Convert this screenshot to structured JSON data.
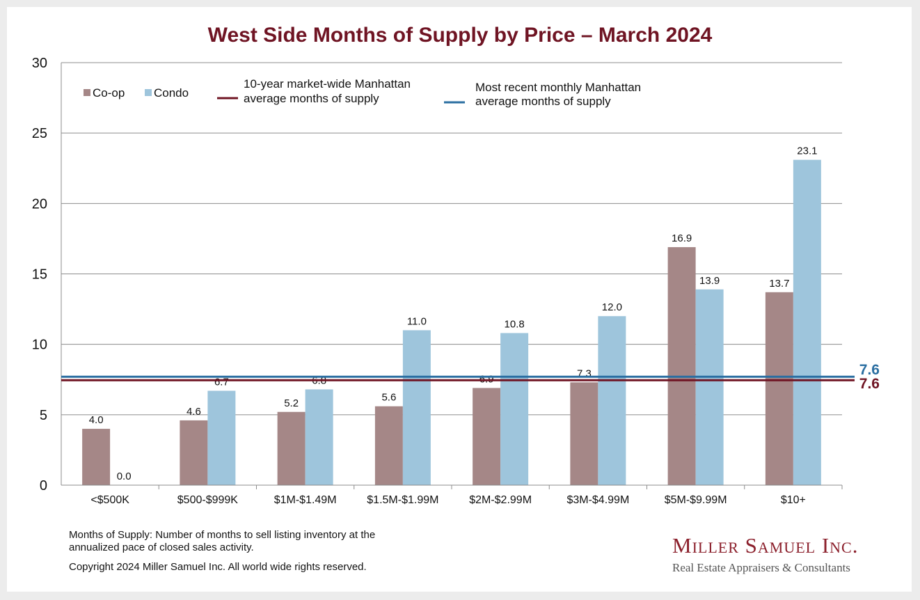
{
  "page": {
    "footnote_line1": "Months of Supply: Number of months to sell listing inventory at the",
    "footnote_line2": "annualized pace of closed sales activity.",
    "copyright": "Copyright 2024 Miller Samuel Inc.  All world wide rights reserved.",
    "brand_name": "Miller Samuel Inc.",
    "brand_tagline": "Real Estate Appraisers & Consultants"
  },
  "chart_data": {
    "type": "bar",
    "title": "West Side Months of Supply by Price – March 2024",
    "categories": [
      "<$500K",
      "$500-$999K",
      "$1M-$1.49M",
      "$1.5M-$1.99M",
      "$2M-$2.99M",
      "$3M-$4.99M",
      "$5M-$9.99M",
      "$10+"
    ],
    "series": [
      {
        "name": "Co-op",
        "color": "#a58787",
        "values": [
          4.0,
          4.6,
          5.2,
          5.6,
          6.9,
          7.3,
          16.9,
          13.7
        ],
        "labels": [
          "4.0",
          "4.6",
          "5.2",
          "5.6",
          "6.9",
          "7.3",
          "16.9",
          "13.7"
        ]
      },
      {
        "name": "Condo",
        "color": "#9ec5dc",
        "values": [
          0.0,
          6.7,
          6.8,
          11.0,
          10.8,
          12.0,
          13.9,
          23.1
        ],
        "labels": [
          "0.0",
          "6.7",
          "6.8",
          "11.0",
          "10.8",
          "12.0",
          "13.9",
          "23.1"
        ]
      }
    ],
    "reference_lines": [
      {
        "name": "10-year market-wide Manhattan average months of supply",
        "legend_lines": [
          "10-year market-wide Manhattan",
          "average months of supply"
        ],
        "value": 7.6,
        "label": "7.6",
        "color": "#6f1423"
      },
      {
        "name": "Most recent monthly Manhattan average months of supply",
        "legend_lines": [
          "Most recent monthly Manhattan",
          "average months of supply"
        ],
        "value": 7.6,
        "label": "7.6",
        "color": "#2a6ea1"
      }
    ],
    "ylim": [
      0,
      30
    ],
    "yticks": [
      0,
      5,
      10,
      15,
      20,
      25,
      30
    ],
    "ytick_labels": [
      "0",
      "5",
      "10",
      "15",
      "20",
      "25",
      "30"
    ],
    "grid": true,
    "legend": "top-left"
  }
}
